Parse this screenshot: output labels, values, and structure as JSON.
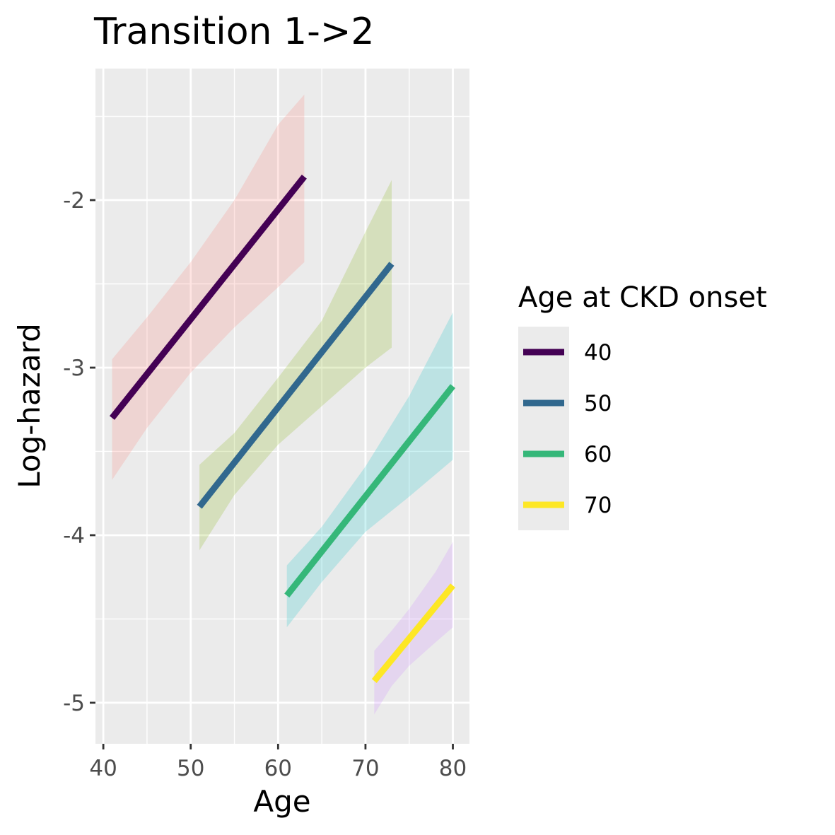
{
  "chart_data": {
    "type": "line",
    "title": "Transition 1->2",
    "xlabel": "Age",
    "ylabel": "Log-hazard",
    "xlim": [
      39.1,
      81.9
    ],
    "ylim": [
      -5.245,
      -1.215
    ],
    "x_ticks": [
      40,
      50,
      60,
      70,
      80
    ],
    "x_minor": [
      45,
      55,
      65,
      75
    ],
    "y_ticks": [
      -5,
      -4,
      -3,
      -2
    ],
    "y_minor": [
      -4.5,
      -3.5,
      -2.5,
      -1.5
    ],
    "grid": true,
    "legend": {
      "title": "Age at CKD onset",
      "position": "right"
    },
    "series": [
      {
        "name": "40",
        "color": "#440154",
        "ribbon_color": "#F8766D",
        "x": [
          41,
          63
        ],
        "y": [
          -3.3,
          -1.86
        ],
        "ribbon": {
          "x": [
            41,
            45,
            50,
            55,
            60,
            63
          ],
          "lower": [
            -3.67,
            -3.36,
            -3.03,
            -2.76,
            -2.52,
            -2.37
          ],
          "upper": [
            -2.95,
            -2.7,
            -2.37,
            -2.0,
            -1.55,
            -1.37
          ]
        }
      },
      {
        "name": "50",
        "color": "#31688E",
        "ribbon_color": "#7CAE00",
        "x": [
          51,
          73
        ],
        "y": [
          -3.83,
          -2.38
        ],
        "ribbon": {
          "x": [
            51,
            55,
            60,
            65,
            70,
            73
          ],
          "lower": [
            -4.09,
            -3.76,
            -3.46,
            -3.23,
            -3.0,
            -2.88
          ],
          "upper": [
            -3.58,
            -3.39,
            -3.06,
            -2.72,
            -2.19,
            -1.88
          ]
        }
      },
      {
        "name": "60",
        "color": "#35B779",
        "ribbon_color": "#00BFC4",
        "x": [
          61,
          80
        ],
        "y": [
          -4.36,
          -3.11
        ],
        "ribbon": {
          "x": [
            61,
            65,
            70,
            75,
            80
          ],
          "lower": [
            -4.55,
            -4.28,
            -3.98,
            -3.77,
            -3.55
          ],
          "upper": [
            -4.18,
            -3.95,
            -3.59,
            -3.17,
            -2.67
          ]
        }
      },
      {
        "name": "70",
        "color": "#FDE725",
        "ribbon_color": "#C77CFF",
        "x": [
          71,
          80
        ],
        "y": [
          -4.87,
          -4.3
        ],
        "ribbon": {
          "x": [
            71,
            73,
            75,
            78,
            80
          ],
          "lower": [
            -5.07,
            -4.9,
            -4.78,
            -4.64,
            -4.55
          ],
          "upper": [
            -4.69,
            -4.57,
            -4.44,
            -4.22,
            -4.04
          ]
        }
      }
    ]
  }
}
